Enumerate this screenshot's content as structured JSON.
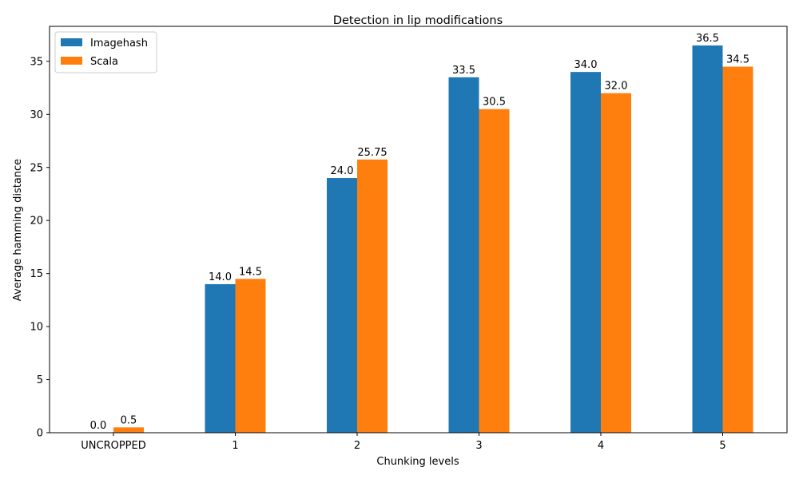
{
  "chart_data": {
    "type": "bar",
    "title": "Detection in lip modifications",
    "xlabel": "Chunking levels",
    "ylabel": "Average hamming distance",
    "categories": [
      "UNCROPPED",
      "1",
      "2",
      "3",
      "4",
      "5"
    ],
    "series": [
      {
        "name": "Imagehash",
        "color": "#1f77b4",
        "values": [
          0.0,
          14.0,
          24.0,
          33.5,
          34.0,
          36.5
        ],
        "labels": [
          "0.0",
          "14.0",
          "24.0",
          "33.5",
          "34.0",
          "36.5"
        ]
      },
      {
        "name": "Scala",
        "color": "#ff7f0e",
        "values": [
          0.5,
          14.5,
          25.75,
          30.5,
          32.0,
          34.5
        ],
        "labels": [
          "0.5",
          "14.5",
          "25.75",
          "30.5",
          "32.0",
          "34.5"
        ]
      }
    ],
    "ylim": [
      0,
      38.3
    ],
    "yticks": [
      0,
      5,
      10,
      15,
      20,
      25,
      30,
      35
    ],
    "grid": false,
    "legend": "top-left"
  }
}
